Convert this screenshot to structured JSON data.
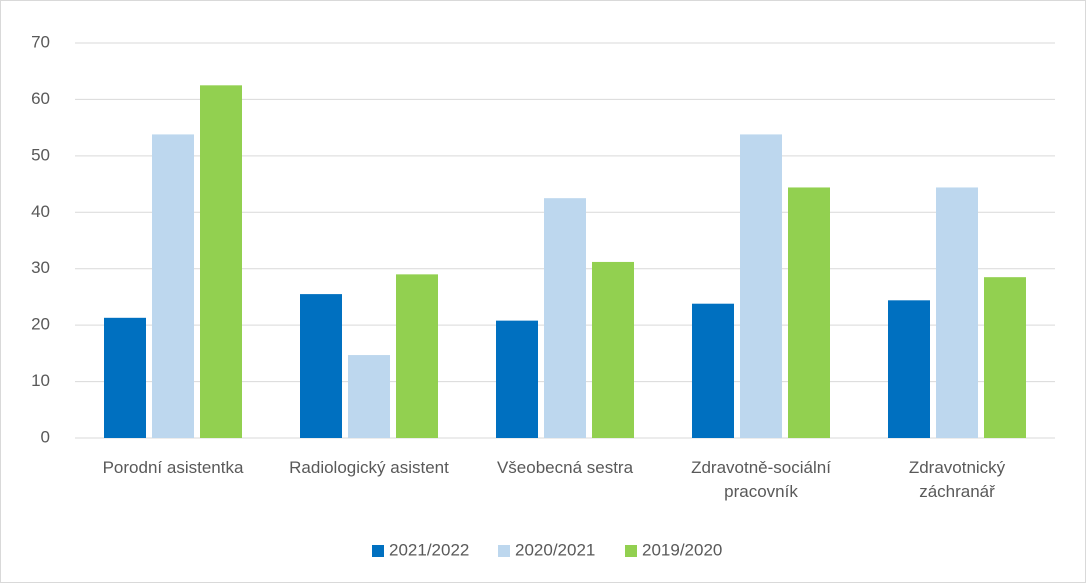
{
  "chart_data": {
    "type": "bar",
    "categories": [
      "Porodní asistentka",
      "Radiologický asistent",
      "Všeobecná sestra",
      "Zdravotně-sociální pracovník",
      "Zdravotnický záchranář"
    ],
    "series": [
      {
        "name": "2021/2022",
        "color": "#0070c0",
        "values": [
          21.3,
          25.5,
          20.8,
          23.8,
          24.4
        ]
      },
      {
        "name": "2020/2021",
        "color": "#bdd7ee",
        "values": [
          53.8,
          14.7,
          42.5,
          53.8,
          44.4
        ]
      },
      {
        "name": "2019/2020",
        "color": "#92d050",
        "values": [
          62.5,
          29,
          31.2,
          44.4,
          28.5
        ]
      }
    ],
    "ylim": [
      0,
      70
    ],
    "yticks": [
      0,
      10,
      20,
      30,
      40,
      50,
      60,
      70
    ],
    "grid": true,
    "legend": "bottom"
  }
}
